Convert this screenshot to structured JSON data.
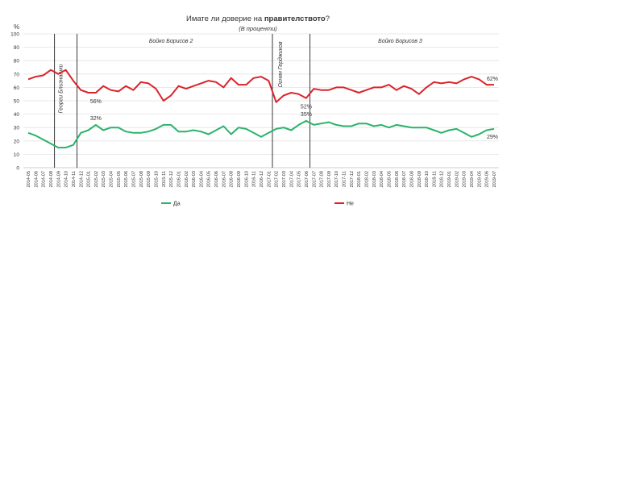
{
  "chart_data": {
    "type": "line",
    "title_prefix": "Имате ли доверие на ",
    "title_bold": "правителството",
    "title_suffix": "?",
    "subtitle": "(В проценти)",
    "ylabel": "%",
    "ylim": [
      0,
      100
    ],
    "yticks": [
      0,
      10,
      20,
      30,
      40,
      50,
      60,
      70,
      80,
      90,
      100
    ],
    "grid": true,
    "legend_position": "bottom",
    "categories": [
      "2014-05",
      "2014-06",
      "2014-07",
      "2014-08",
      "2014-09",
      "2014-10",
      "2014-11",
      "2014-12",
      "2015-01",
      "2015-02",
      "2015-03",
      "2015-04",
      "2015-05",
      "2015-06",
      "2015-07",
      "2015-08",
      "2015-09",
      "2015-10",
      "2015-11",
      "2015-12",
      "2016-01",
      "2016-02",
      "2016-03",
      "2016-04",
      "2016-05",
      "2016-06",
      "2016-07",
      "2016-08",
      "2016-09",
      "2016-10",
      "2016-11",
      "2016-12",
      "2017-01",
      "2017-02",
      "2017-03",
      "2017-04",
      "2017-05",
      "2017-06",
      "2017-07",
      "2017-08",
      "2017-09",
      "2017-10",
      "2017-11",
      "2017-12",
      "2018-01",
      "2018-02",
      "2018-03",
      "2018-04",
      "2018-05",
      "2018-06",
      "2018-07",
      "2018-08",
      "2018-09",
      "2018-10",
      "2018-11",
      "2018-12",
      "2019-01",
      "2019-02",
      "2019-03",
      "2019-04",
      "2019-05",
      "2019-06",
      "2019-07"
    ],
    "series": [
      {
        "name": "Да",
        "color": "#2ab36a",
        "values": [
          26,
          24,
          21,
          18,
          15,
          15,
          17,
          26,
          28,
          32,
          28,
          30,
          30,
          27,
          26,
          26,
          27,
          29,
          32,
          32,
          27,
          27,
          28,
          27,
          25,
          28,
          31,
          25,
          30,
          29,
          26,
          23,
          26,
          29,
          30,
          28,
          32,
          35,
          32,
          33,
          34,
          32,
          31,
          31,
          33,
          33,
          31,
          32,
          30,
          32,
          31,
          30,
          30,
          30,
          28,
          26,
          28,
          29,
          26,
          23,
          25,
          28,
          29
        ]
      },
      {
        "name": "Не",
        "color": "#d9242b",
        "values": [
          66,
          68,
          69,
          73,
          70,
          73,
          65,
          58,
          56,
          56,
          61,
          58,
          57,
          61,
          58,
          64,
          63,
          59,
          50,
          54,
          61,
          59,
          61,
          63,
          65,
          64,
          60,
          67,
          62,
          62,
          67,
          68,
          65,
          49,
          54,
          56,
          55,
          52,
          59,
          58,
          58,
          60,
          60,
          58,
          56,
          58,
          60,
          60,
          62,
          58,
          61,
          59,
          55,
          60,
          64,
          63,
          64,
          63,
          66,
          68,
          66,
          62,
          62
        ]
      }
    ],
    "annotations": [
      {
        "text": "56%",
        "series": 1,
        "index": 9
      },
      {
        "text": "32%",
        "series": 0,
        "index": 9
      },
      {
        "text": "52%",
        "series": 1,
        "index": 37
      },
      {
        "text": "35%",
        "series": 0,
        "index": 37
      },
      {
        "text": "62%",
        "series": 1,
        "index": 62
      },
      {
        "text": "29%",
        "series": 0,
        "index": 62
      }
    ],
    "period_lines": [
      {
        "label": "Георги Близнашки",
        "after_index": 3
      },
      {
        "label": "Бойко Борисов 2",
        "after_index": 6
      },
      {
        "label": "Огнян Герджиков",
        "after_index": 32
      },
      {
        "label": "Бойко Борисов 3",
        "after_index": 37
      }
    ],
    "period_labels": [
      {
        "text": "Георги Близнашки",
        "orientation": "vertical"
      },
      {
        "text": "Бойко Борисов 2",
        "orientation": "horizontal"
      },
      {
        "text": "Огнян Герджиков",
        "orientation": "vertical"
      },
      {
        "text": "Бойко Борисов 3",
        "orientation": "horizontal"
      }
    ]
  }
}
